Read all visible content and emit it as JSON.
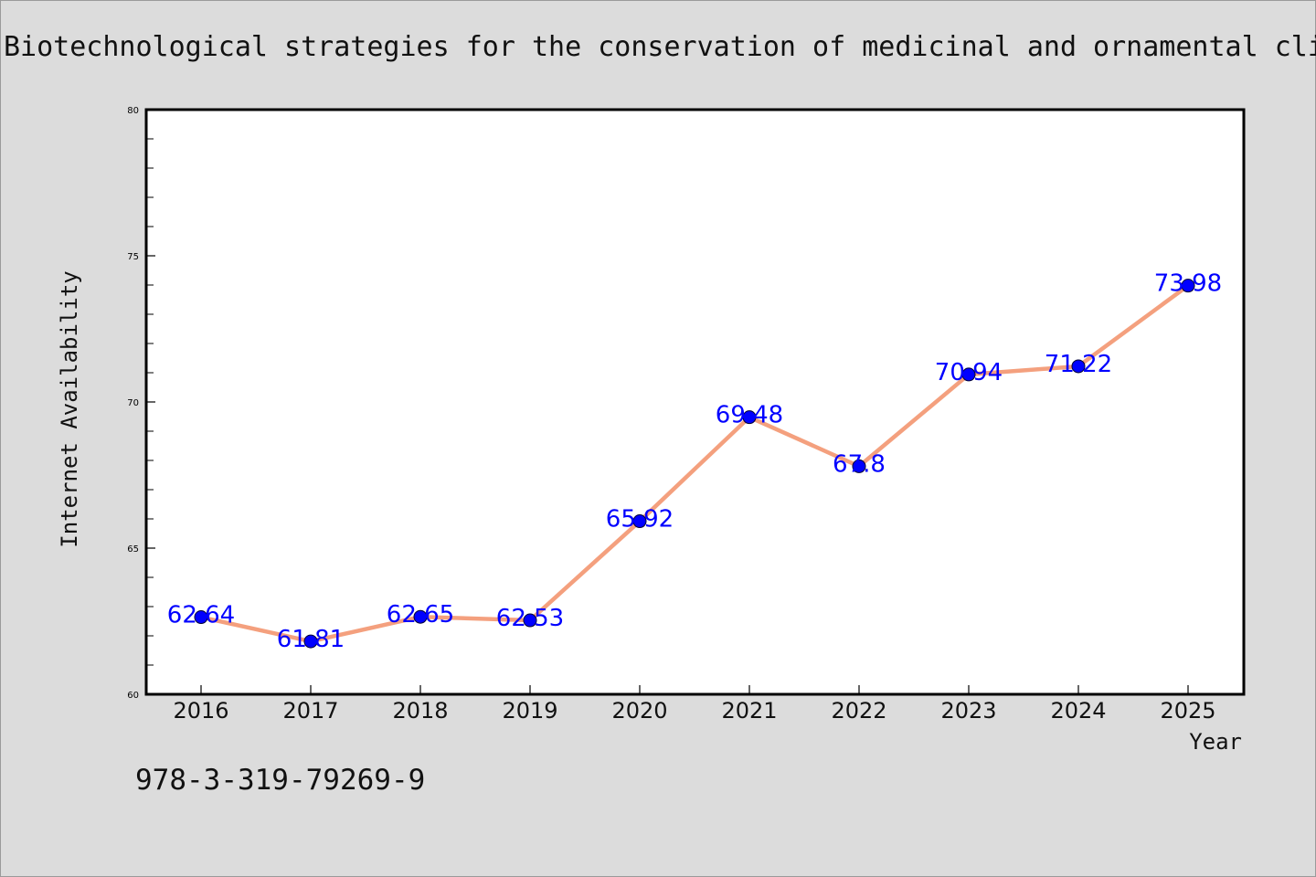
{
  "title": "Biotechnological strategies for the conservation of medicinal and ornamental cli",
  "footer_text": "978-3-319-79269-9",
  "colors": {
    "background": "#dcdcdc",
    "plot_background": "#ffffff",
    "line": "#f4a07e",
    "marker": "#0000ff",
    "data_label": "#0000ff"
  },
  "chart_data": {
    "type": "line",
    "x": [
      "2016",
      "2017",
      "2018",
      "2019",
      "2020",
      "2021",
      "2022",
      "2023",
      "2024",
      "2025"
    ],
    "series": [
      {
        "values": [
          62.64,
          61.81,
          62.65,
          62.53,
          65.92,
          69.48,
          67.8,
          70.94,
          71.22,
          73.98
        ],
        "labels": [
          "62.64",
          "61.81",
          "62.65",
          "62.53",
          "65.92",
          "69.48",
          "67.8",
          "70.94",
          "71.22",
          "73.98"
        ]
      }
    ],
    "xlabel": "Year",
    "ylabel": "Internet Availability",
    "ylim": [
      60,
      80
    ],
    "yticks": [
      "60",
      "65",
      "70",
      "75",
      "80"
    ],
    "grid": false,
    "legend": "none"
  }
}
